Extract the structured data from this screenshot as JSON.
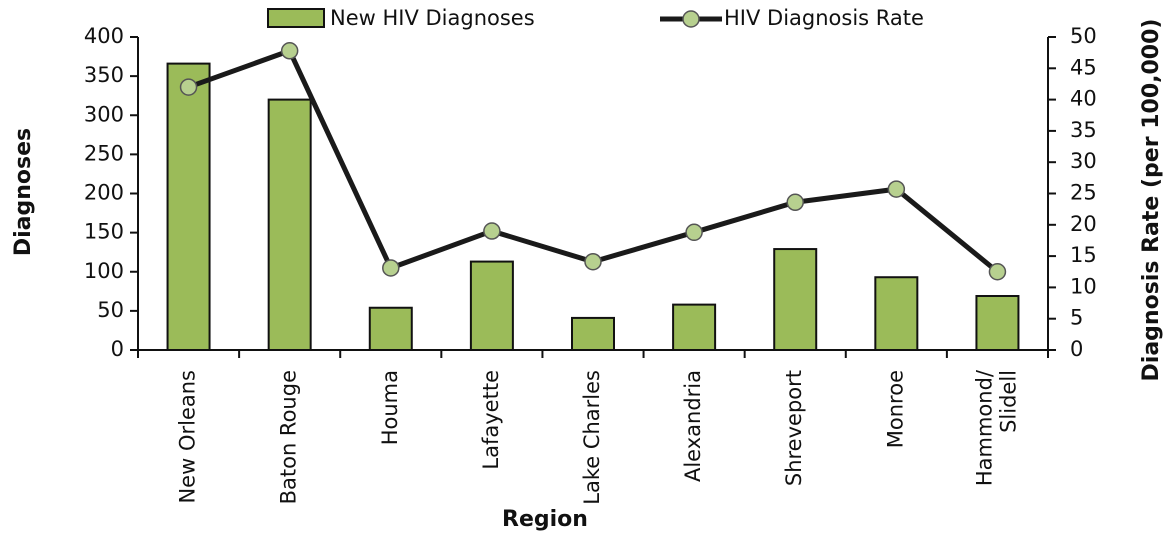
{
  "chart_data": {
    "type": "bar-line",
    "categories": [
      "New Orleans",
      "Baton Rouge",
      "Houma",
      "Lafayette",
      "Lake Charles",
      "Alexandria",
      "Shreveport",
      "Monroe",
      "Hammond/\nSlidell"
    ],
    "series": [
      {
        "name": "New HIV Diagnoses",
        "type": "bar",
        "color": "#9bbb59",
        "values": [
          366,
          320,
          54,
          113,
          41,
          58,
          129,
          93,
          69
        ]
      },
      {
        "name": "HIV Diagnosis Rate",
        "type": "line",
        "axis": "y2",
        "color": "#1a1a1a",
        "marker_color": "#b7d08f",
        "values": [
          42.0,
          47.8,
          13.1,
          19.0,
          14.1,
          18.8,
          23.6,
          25.7,
          12.5
        ]
      }
    ],
    "xlabel": "Region",
    "ylabel": "Diagnoses",
    "y2label": "Diagnosis Rate (per 100,000)",
    "ylim": [
      0,
      400
    ],
    "yticks": [
      0,
      50,
      100,
      150,
      200,
      250,
      300,
      350,
      400
    ],
    "y2lim": [
      0,
      50
    ],
    "y2ticks": [
      0,
      5,
      10,
      15,
      20,
      25,
      30,
      35,
      40,
      45,
      50
    ],
    "grid": false
  }
}
